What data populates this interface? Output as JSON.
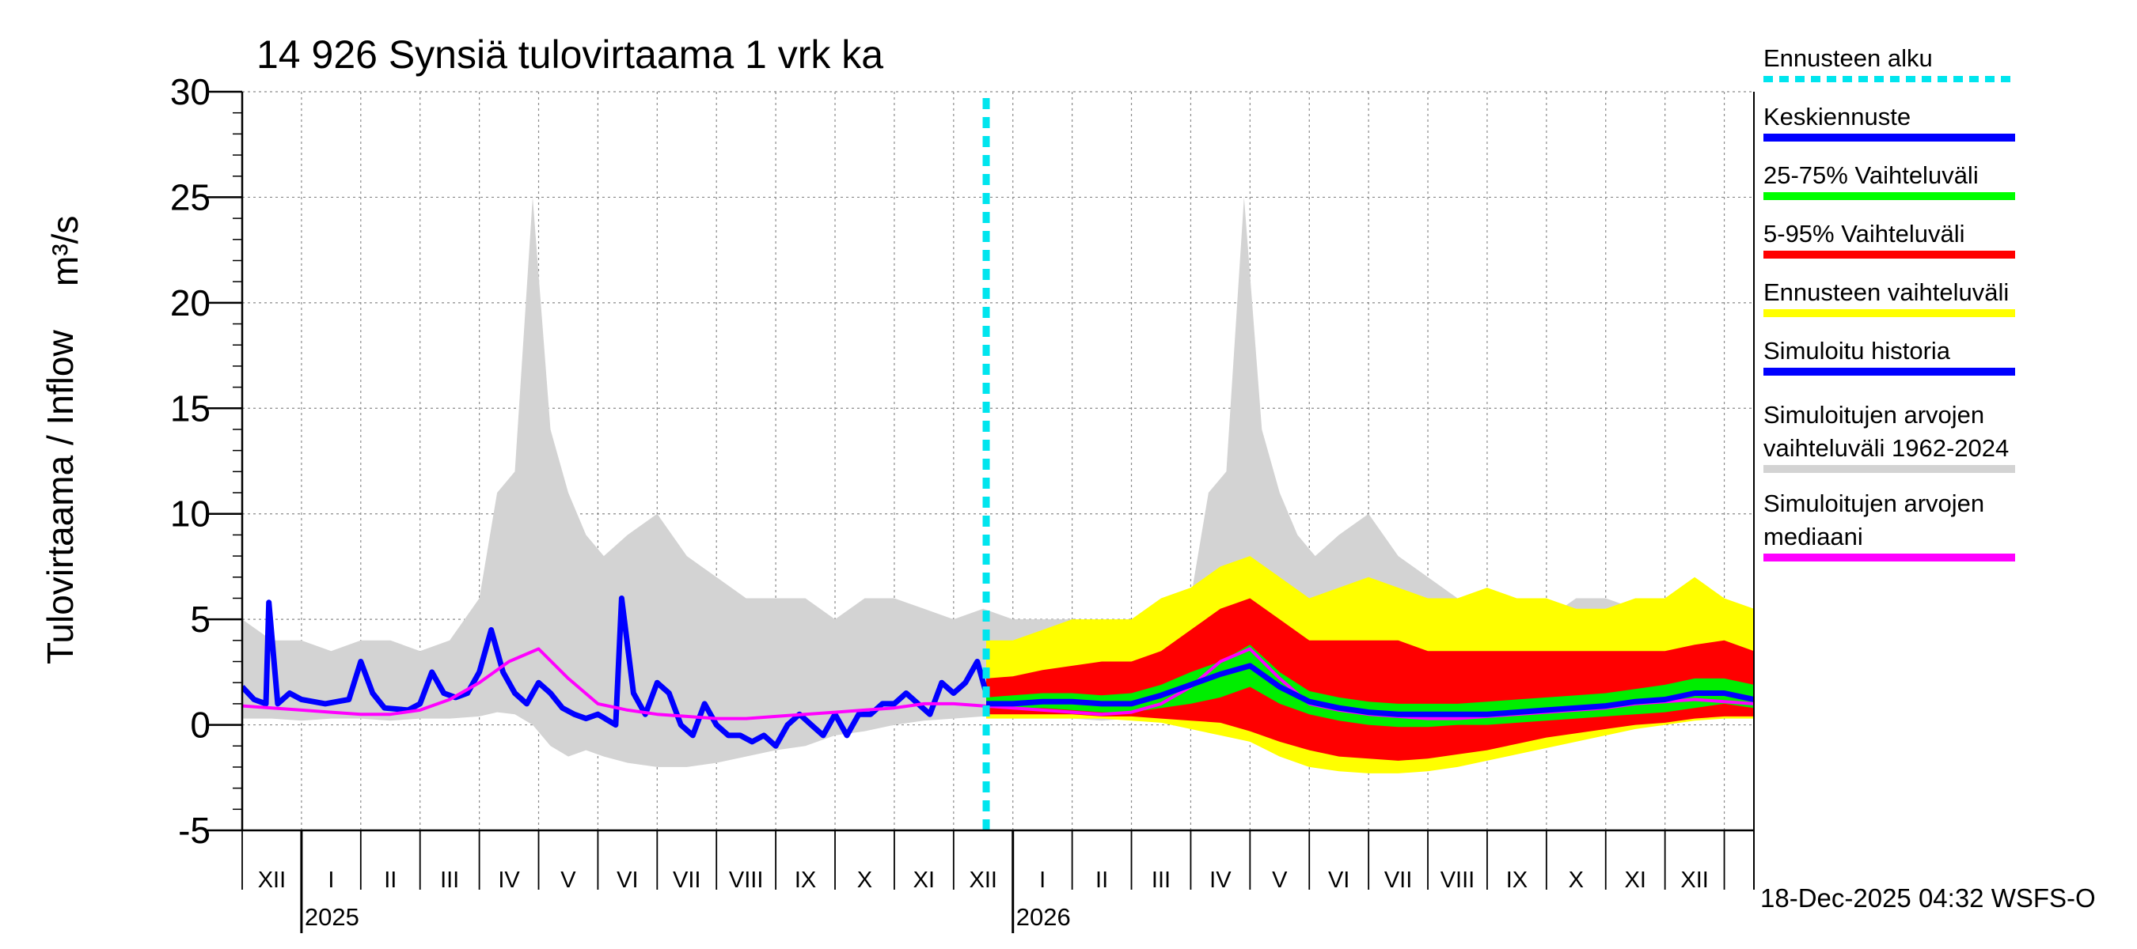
{
  "chart_data": {
    "type": "area",
    "title": "14 926 Synsiä tulovirtaama 1 vrk ka",
    "ylabel": "Tulovirtaama / Inflow",
    "yunit": "m³/s",
    "ylim": [
      -5,
      30
    ],
    "yticks": [
      -5,
      0,
      5,
      10,
      15,
      20,
      25,
      30
    ],
    "grid": true,
    "xlim_months": [
      0,
      25.5
    ],
    "forecast_start_month": 12.55,
    "month_labels": [
      "XII",
      "I",
      "II",
      "III",
      "IV",
      "V",
      "VI",
      "VII",
      "VIII",
      "IX",
      "X",
      "XI",
      "XII",
      "I",
      "II",
      "III",
      "IV",
      "V",
      "VI",
      "VII",
      "VIII",
      "IX",
      "X",
      "XI",
      "XII"
    ],
    "year_labels": [
      {
        "label": "2025",
        "month": 1
      },
      {
        "label": "2026",
        "month": 13
      }
    ],
    "legend": [
      {
        "label": "Ennusteen alku",
        "color": "#00e5ee",
        "style": "dotted"
      },
      {
        "label": "Keskiennuste",
        "color": "#0000ff",
        "style": "solid"
      },
      {
        "label": "25-75% Vaihteluväli",
        "color": "#00ff00",
        "style": "solid"
      },
      {
        "label": "5-95% Vaihteluväli",
        "color": "#ff0000",
        "style": "solid"
      },
      {
        "label": "Ennusteen vaihteluväli",
        "color": "#ffff00",
        "style": "solid"
      },
      {
        "label": "Simuloitu historia",
        "color": "#0000ff",
        "style": "solid"
      },
      {
        "label": "Simuloitujen arvojen vaihteluväli 1962-2024",
        "label_lines": [
          "Simuloitujen arvojen",
          "vaihteluväli 1962-2024"
        ],
        "color": "#d3d3d3",
        "style": "solid"
      },
      {
        "label": "Simuloitujen arvojen mediaani",
        "label_lines": [
          "Simuloitujen arvojen",
          "mediaani"
        ],
        "color": "#ff00ff",
        "style": "solid"
      }
    ],
    "series": [
      {
        "name": "Simuloitujen arvojen vaihteluväli 1962-2024",
        "color": "#d3d3d3",
        "x": [
          0,
          0.5,
          1,
          1.5,
          2,
          2.5,
          3,
          3.5,
          4,
          4.3,
          4.6,
          4.9,
          5.2,
          5.5,
          5.8,
          6.1,
          6.5,
          7,
          7.5,
          8,
          8.5,
          9,
          9.5,
          10,
          10.5,
          11,
          11.5,
          12,
          12.5,
          13,
          13.5,
          14,
          14.5,
          15,
          15.5,
          16,
          16.3,
          16.6,
          16.9,
          17.2,
          17.5,
          17.8,
          18.1,
          18.5,
          19,
          19.5,
          20,
          20.5,
          21,
          21.5,
          22,
          22.5,
          23,
          23.5,
          24,
          24.5,
          25,
          25.5
        ],
        "low": [
          0.3,
          0.3,
          0.2,
          0.3,
          0.3,
          0.2,
          0.3,
          0.3,
          0.4,
          0.6,
          0.5,
          0,
          -1,
          -1.5,
          -1.2,
          -1.5,
          -1.8,
          -2,
          -2,
          -1.8,
          -1.5,
          -1.2,
          -1,
          -0.5,
          -0.3,
          0,
          0.2,
          0.3,
          0.4,
          0.3,
          0.3,
          0.3,
          0.2,
          0.3,
          0.3,
          0.4,
          0.6,
          0.5,
          0,
          -1,
          -1.5,
          -1.2,
          -1.5,
          -1.8,
          -2,
          -2,
          -1.8,
          -1.5,
          -1.2,
          -1,
          -0.5,
          -0.3,
          0,
          0.2,
          0.3,
          0.3,
          0.4,
          0.3
        ],
        "high": [
          5,
          4,
          4,
          3.5,
          4,
          4,
          3.5,
          4,
          6,
          11,
          12,
          25,
          14,
          11,
          9,
          8,
          9,
          10,
          8,
          7,
          6,
          6,
          6,
          5,
          6,
          6,
          5.5,
          5,
          5.5,
          5,
          5,
          5,
          4.5,
          4.5,
          5,
          6,
          11,
          12,
          25,
          14,
          11,
          9,
          8,
          9,
          10,
          8,
          7,
          6,
          6,
          6,
          5,
          6,
          6,
          5.5,
          5.5,
          5.5,
          5,
          5
        ]
      },
      {
        "name": "Ennusteen vaihteluväli",
        "color": "#ffff00",
        "x": [
          12.55,
          13,
          13.5,
          14,
          14.5,
          15,
          15.5,
          16,
          16.5,
          17,
          17.5,
          18,
          18.5,
          19,
          19.5,
          20,
          20.5,
          21,
          21.5,
          22,
          22.5,
          23,
          23.5,
          24,
          24.5,
          25,
          25.5
        ],
        "low": [
          0.3,
          0.3,
          0.3,
          0.3,
          0.3,
          0.2,
          0.1,
          -0.2,
          -0.5,
          -0.8,
          -1.5,
          -2,
          -2.2,
          -2.3,
          -2.3,
          -2.2,
          -2,
          -1.7,
          -1.4,
          -1.1,
          -0.8,
          -0.5,
          -0.2,
          0,
          0.2,
          0.3,
          0.3
        ],
        "high": [
          4,
          4,
          4.5,
          5,
          5,
          5,
          6,
          6.5,
          7.5,
          8,
          7,
          6,
          6.5,
          7,
          6.5,
          6,
          6,
          6.5,
          6,
          6,
          5.5,
          5.5,
          6,
          6,
          7,
          6,
          5.5
        ]
      },
      {
        "name": "5-95% Vaihteluväli",
        "color": "#ff0000",
        "x": [
          12.55,
          13,
          13.5,
          14,
          14.5,
          15,
          15.5,
          16,
          16.5,
          17,
          17.5,
          18,
          18.5,
          19,
          19.5,
          20,
          20.5,
          21,
          21.5,
          22,
          22.5,
          23,
          23.5,
          24,
          24.5,
          25,
          25.5
        ],
        "low": [
          0.5,
          0.5,
          0.5,
          0.5,
          0.4,
          0.4,
          0.3,
          0.2,
          0.1,
          -0.3,
          -0.8,
          -1.2,
          -1.5,
          -1.6,
          -1.7,
          -1.6,
          -1.4,
          -1.2,
          -0.9,
          -0.6,
          -0.4,
          -0.2,
          0,
          0.1,
          0.3,
          0.4,
          0.4
        ],
        "high": [
          2.2,
          2.3,
          2.6,
          2.8,
          3,
          3,
          3.5,
          4.5,
          5.5,
          6,
          5,
          4,
          4,
          4,
          4,
          3.5,
          3.5,
          3.5,
          3.5,
          3.5,
          3.5,
          3.5,
          3.5,
          3.5,
          3.8,
          4,
          3.5
        ]
      },
      {
        "name": "25-75% Vaihteluväli",
        "color": "#00ee00",
        "x": [
          12.55,
          13,
          13.5,
          14,
          14.5,
          15,
          15.5,
          16,
          16.5,
          17,
          17.5,
          18,
          18.5,
          19,
          19.5,
          20,
          20.5,
          21,
          21.5,
          22,
          22.5,
          23,
          23.5,
          24,
          24.5,
          25,
          25.5
        ],
        "low": [
          0.8,
          0.8,
          0.8,
          0.7,
          0.6,
          0.6,
          0.8,
          1,
          1.3,
          1.8,
          1,
          0.5,
          0.2,
          0,
          -0.1,
          -0.1,
          0,
          0,
          0.1,
          0.2,
          0.3,
          0.4,
          0.5,
          0.6,
          0.8,
          1,
          0.8
        ],
        "high": [
          1.3,
          1.4,
          1.5,
          1.5,
          1.4,
          1.5,
          1.9,
          2.5,
          3,
          3.8,
          2.5,
          1.6,
          1.3,
          1.1,
          1,
          1,
          1,
          1.1,
          1.2,
          1.3,
          1.4,
          1.5,
          1.7,
          1.9,
          2.2,
          2.2,
          1.9
        ]
      },
      {
        "name": "Simuloitu historia",
        "color": "#0000ff",
        "x": [
          0,
          0.2,
          0.4,
          0.45,
          0.6,
          0.8,
          1,
          1.4,
          1.8,
          2,
          2.2,
          2.4,
          2.8,
          3,
          3.2,
          3.4,
          3.6,
          3.8,
          4,
          4.2,
          4.4,
          4.6,
          4.8,
          5,
          5.2,
          5.4,
          5.6,
          5.8,
          6,
          6.3,
          6.4,
          6.6,
          6.8,
          7,
          7.2,
          7.4,
          7.6,
          7.8,
          8,
          8.2,
          8.4,
          8.6,
          8.8,
          9,
          9.2,
          9.4,
          9.6,
          9.8,
          10,
          10.2,
          10.4,
          10.6,
          10.8,
          11,
          11.2,
          11.4,
          11.6,
          11.8,
          12,
          12.2,
          12.4,
          12.55
        ],
        "y": [
          1.8,
          1.2,
          1,
          5.8,
          1,
          1.5,
          1.2,
          1,
          1.2,
          3,
          1.5,
          0.8,
          0.7,
          1,
          2.5,
          1.5,
          1.3,
          1.5,
          2.5,
          4.5,
          2.5,
          1.5,
          1,
          2,
          1.5,
          0.8,
          0.5,
          0.3,
          0.5,
          0,
          6,
          1.5,
          0.5,
          2,
          1.5,
          0,
          -0.5,
          1,
          0,
          -0.5,
          -0.5,
          -0.8,
          -0.5,
          -1,
          0,
          0.5,
          0,
          -0.5,
          0.5,
          -0.5,
          0.5,
          0.5,
          1,
          1,
          1.5,
          1,
          0.5,
          2,
          1.5,
          2,
          3,
          1.5
        ]
      },
      {
        "name": "Simuloitujen arvojen mediaani",
        "color": "#ff00ff",
        "x": [
          0,
          0.5,
          1,
          1.5,
          2,
          2.5,
          3,
          3.5,
          4,
          4.5,
          5,
          5.5,
          6,
          6.5,
          7,
          7.5,
          8,
          8.5,
          9,
          9.5,
          10,
          10.5,
          11,
          11.5,
          12,
          12.5,
          13,
          13.5,
          14,
          14.5,
          15,
          15.5,
          16,
          16.5,
          17,
          17.5,
          18,
          18.5,
          19,
          19.5,
          20,
          20.5,
          21,
          21.5,
          22,
          22.5,
          23,
          23.5,
          24,
          24.5,
          25,
          25.5
        ],
        "y": [
          0.9,
          0.8,
          0.7,
          0.6,
          0.5,
          0.5,
          0.7,
          1.2,
          2,
          3,
          3.6,
          2.2,
          1,
          0.7,
          0.5,
          0.4,
          0.3,
          0.3,
          0.4,
          0.5,
          0.6,
          0.7,
          0.8,
          1,
          1,
          0.9,
          0.8,
          0.7,
          0.6,
          0.5,
          0.6,
          1,
          1.8,
          3,
          3.6,
          2.2,
          1,
          0.7,
          0.5,
          0.4,
          0.3,
          0.3,
          0.4,
          0.5,
          0.6,
          0.7,
          0.8,
          1,
          1.1,
          1.2,
          1.1,
          1
        ]
      },
      {
        "name": "Keskiennuste",
        "color": "#0000ff",
        "x": [
          12.55,
          13,
          13.5,
          14,
          14.5,
          15,
          15.5,
          16,
          16.5,
          17,
          17.5,
          18,
          18.5,
          19,
          19.5,
          20,
          20.5,
          21,
          21.5,
          22,
          22.5,
          23,
          23.5,
          24,
          24.5,
          25,
          25.5
        ],
        "y": [
          1,
          1,
          1.1,
          1.1,
          1,
          1,
          1.4,
          1.9,
          2.4,
          2.8,
          1.8,
          1.1,
          0.8,
          0.6,
          0.5,
          0.5,
          0.5,
          0.5,
          0.6,
          0.7,
          0.8,
          0.9,
          1.1,
          1.2,
          1.5,
          1.5,
          1.2
        ]
      }
    ]
  },
  "footer": "18-Dec-2025 04:32 WSFS-O"
}
